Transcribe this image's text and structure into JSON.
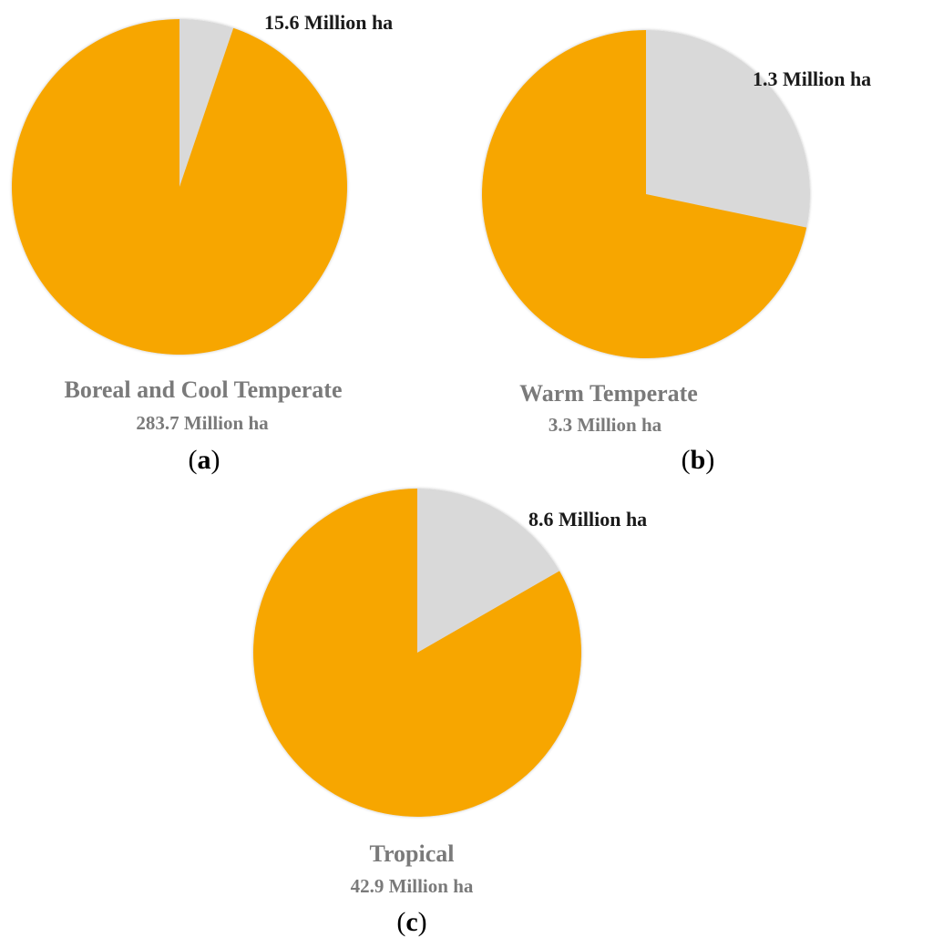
{
  "chart_data": [
    {
      "type": "pie",
      "title": "Boreal and Cool Temperate",
      "subtitle": "283.7 Million ha",
      "panel": "a",
      "slices": [
        {
          "value": 15.6,
          "label": "15.6 Million ha",
          "color": "#d9d9d9"
        },
        {
          "value": 283.7,
          "label": "",
          "color": "#f7a600"
        }
      ]
    },
    {
      "type": "pie",
      "title": "Warm Temperate",
      "subtitle": "3.3 Million ha",
      "panel": "b",
      "slices": [
        {
          "value": 1.3,
          "label": "1.3 Million ha",
          "color": "#d9d9d9"
        },
        {
          "value": 3.3,
          "label": "",
          "color": "#f7a600"
        }
      ]
    },
    {
      "type": "pie",
      "title": "Tropical",
      "subtitle": "42.9 Million ha",
      "panel": "c",
      "slices": [
        {
          "value": 8.6,
          "label": "8.6 Million ha",
          "color": "#d9d9d9"
        },
        {
          "value": 42.9,
          "label": "",
          "color": "#f7a600"
        }
      ]
    }
  ]
}
